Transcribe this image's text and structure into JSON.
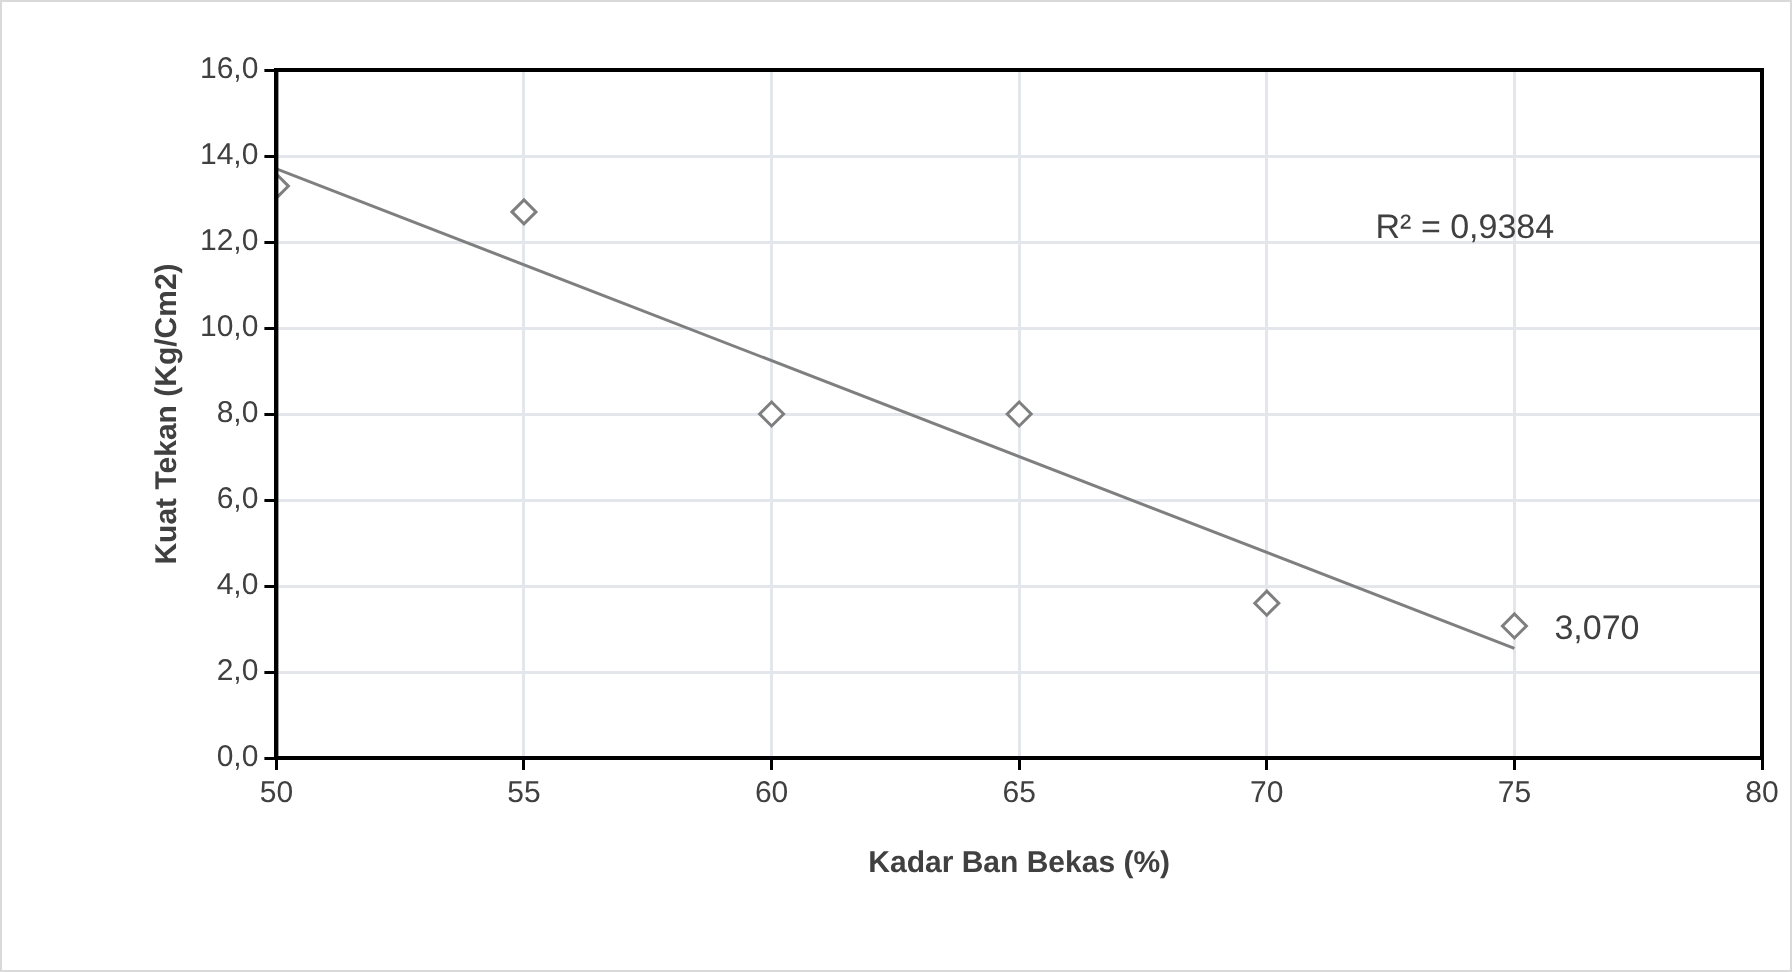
{
  "chart_data": {
    "type": "scatter",
    "xlabel": "Kadar Ban Bekas (%)",
    "ylabel": "Kuat Tekan (Kg/Cm2)",
    "x": [
      50,
      55,
      60,
      65,
      70,
      75
    ],
    "series": [
      {
        "type": "scatter",
        "color": "#7f7f7f",
        "marker": "diamond",
        "values": [
          13.3,
          12.7,
          8.0,
          8.0,
          3.6,
          3.07
        ]
      },
      {
        "type": "line",
        "color": "#7f7f7f",
        "marker": "none",
        "x": [
          50,
          75
        ],
        "values": [
          13.7,
          2.55
        ]
      }
    ],
    "annotations": [
      "R² = 0,9384",
      {
        "text": "3,070",
        "x": 75,
        "y": 3.07
      }
    ],
    "xlim": [
      50,
      80
    ],
    "xticks": [
      50,
      55,
      60,
      65,
      70,
      75,
      80
    ],
    "ylim": [
      0,
      16
    ],
    "yticks": [
      {
        "value": 0,
        "label": "0,0"
      },
      {
        "value": 2,
        "label": "2,0"
      },
      {
        "value": 4,
        "label": "4,0"
      },
      {
        "value": 6,
        "label": "6,0"
      },
      {
        "value": 8,
        "label": "8,0"
      },
      {
        "value": 10,
        "label": "10,0"
      },
      {
        "value": 12,
        "label": "12,0"
      },
      {
        "value": 14,
        "label": "14,0"
      },
      {
        "value": 16,
        "label": "16,0"
      }
    ],
    "grid": true,
    "legend": false
  }
}
